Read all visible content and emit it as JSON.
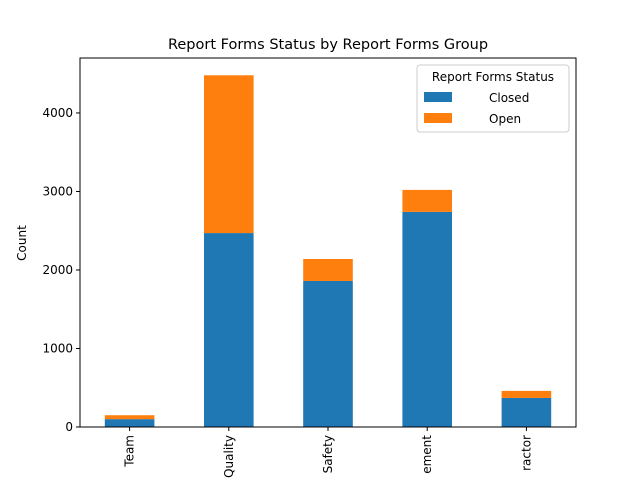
{
  "chart_data": {
    "type": "bar",
    "stacked": true,
    "title": "Report Forms Status by Report Forms Group",
    "xlabel": "",
    "ylabel": "Count",
    "categories": [
      "Team",
      "Quality",
      "Safety",
      "ement",
      "ractor"
    ],
    "series": [
      {
        "name": "Closed",
        "color": "#1f77b4",
        "values": [
          100,
          2470,
          1860,
          2740,
          370
        ]
      },
      {
        "name": "Open",
        "color": "#ff7f0e",
        "values": [
          50,
          2010,
          280,
          280,
          90
        ]
      }
    ],
    "ylim": [
      0,
      4700
    ],
    "yticks": [
      0,
      1000,
      2000,
      3000,
      4000
    ],
    "grid": false,
    "legend": {
      "title": "Report Forms Status",
      "placement": "top-right"
    }
  }
}
